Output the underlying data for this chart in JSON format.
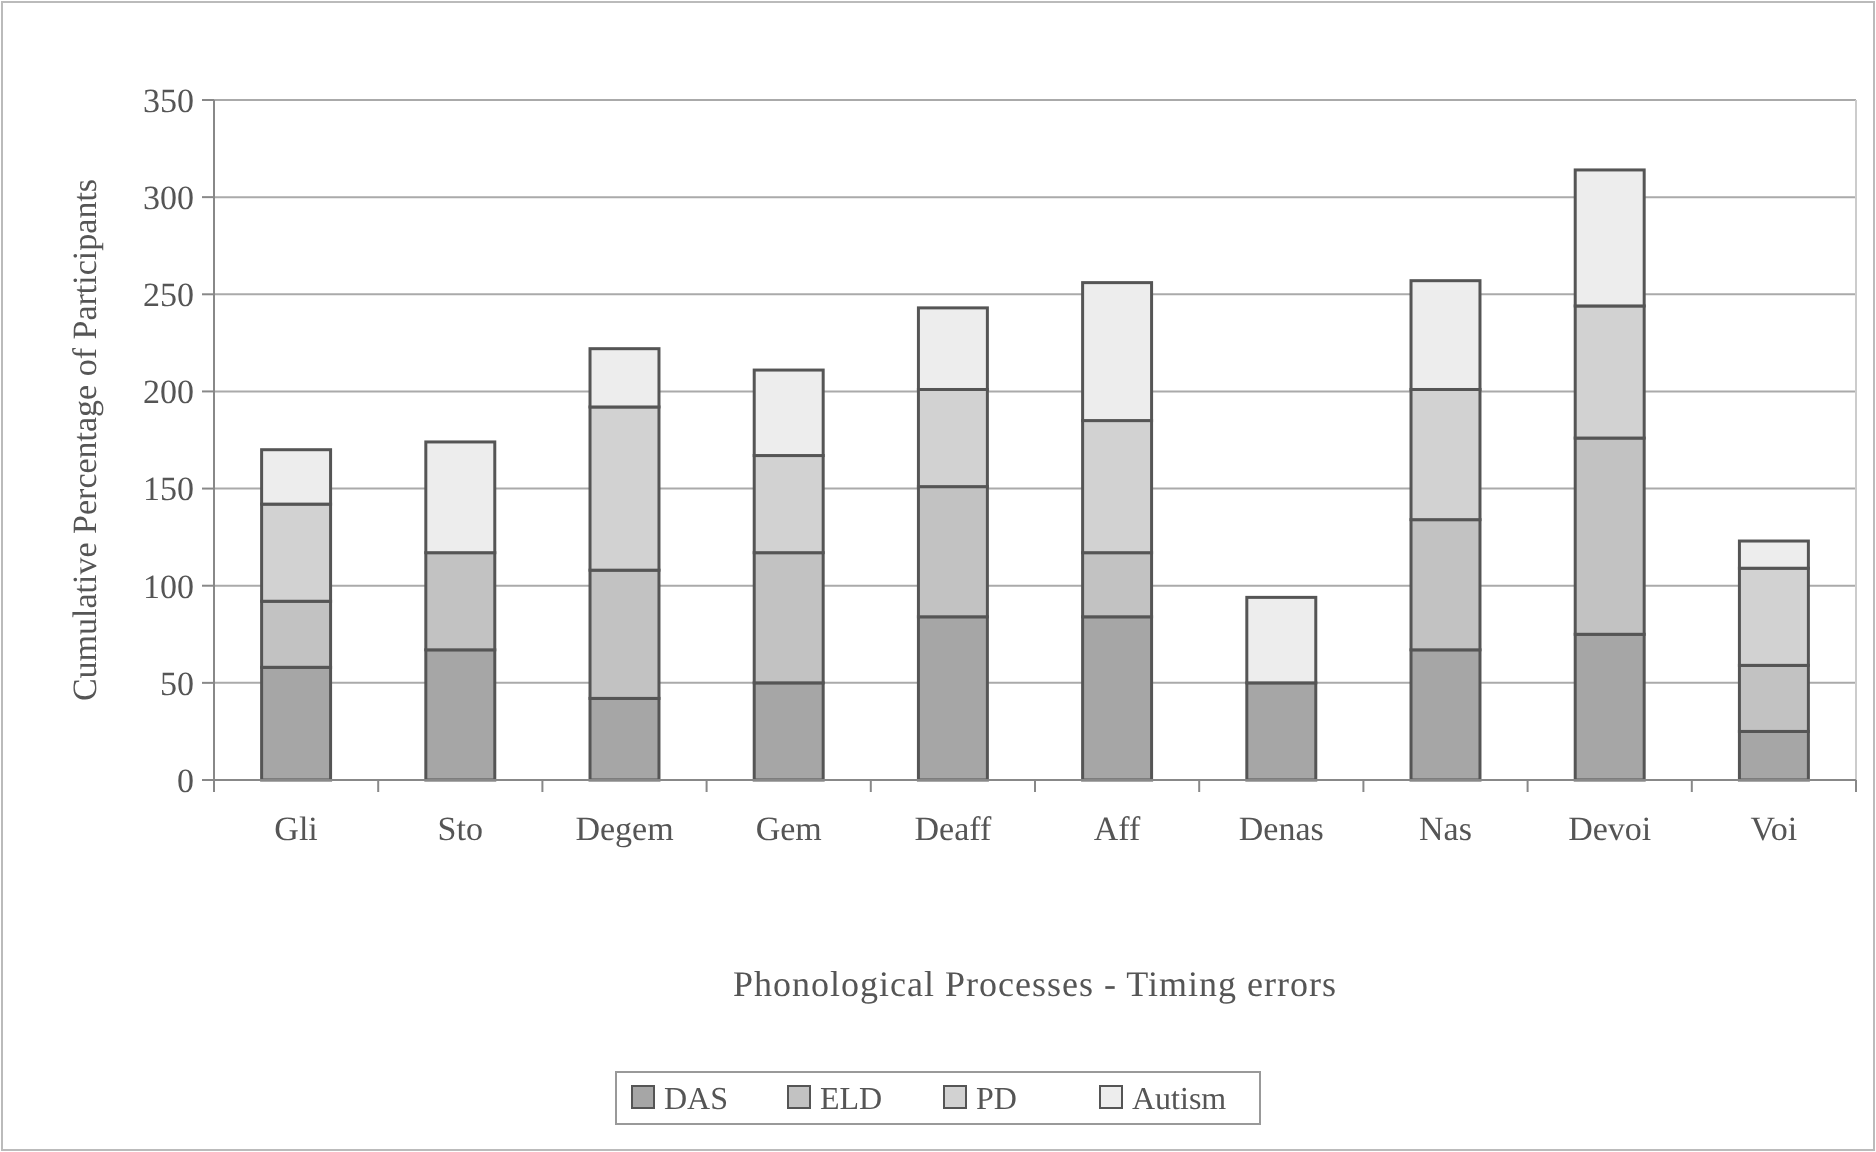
{
  "chart_data": {
    "type": "bar",
    "stacked": true,
    "xlabel": "Phonological Processes - Timing errors",
    "ylabel": "Cumulative Percentage of Participants",
    "categories": [
      "Gli",
      "Sto",
      "Degem",
      "Gem",
      "Deaff",
      "Aff",
      "Denas",
      "Nas",
      "Devoi",
      "Voi"
    ],
    "series": [
      {
        "name": "DAS",
        "color": "#a6a6a6",
        "values": [
          58,
          67,
          42,
          50,
          84,
          84,
          50,
          67,
          75,
          25
        ]
      },
      {
        "name": "ELD",
        "color": "#c2c2c2",
        "values": [
          34,
          50,
          66,
          67,
          67,
          33,
          0,
          67,
          101,
          34
        ]
      },
      {
        "name": "PD",
        "color": "#d2d2d2",
        "values": [
          50,
          0,
          84,
          50,
          50,
          68,
          0,
          67,
          68,
          50
        ]
      },
      {
        "name": "Autism",
        "color": "#ededed",
        "values": [
          28,
          57,
          30,
          44,
          42,
          71,
          44,
          56,
          70,
          14
        ]
      }
    ],
    "ylim": [
      0,
      350
    ],
    "yticks": [
      0,
      50,
      100,
      150,
      200,
      250,
      300,
      350
    ],
    "grid": "y",
    "legend": "bottom"
  }
}
